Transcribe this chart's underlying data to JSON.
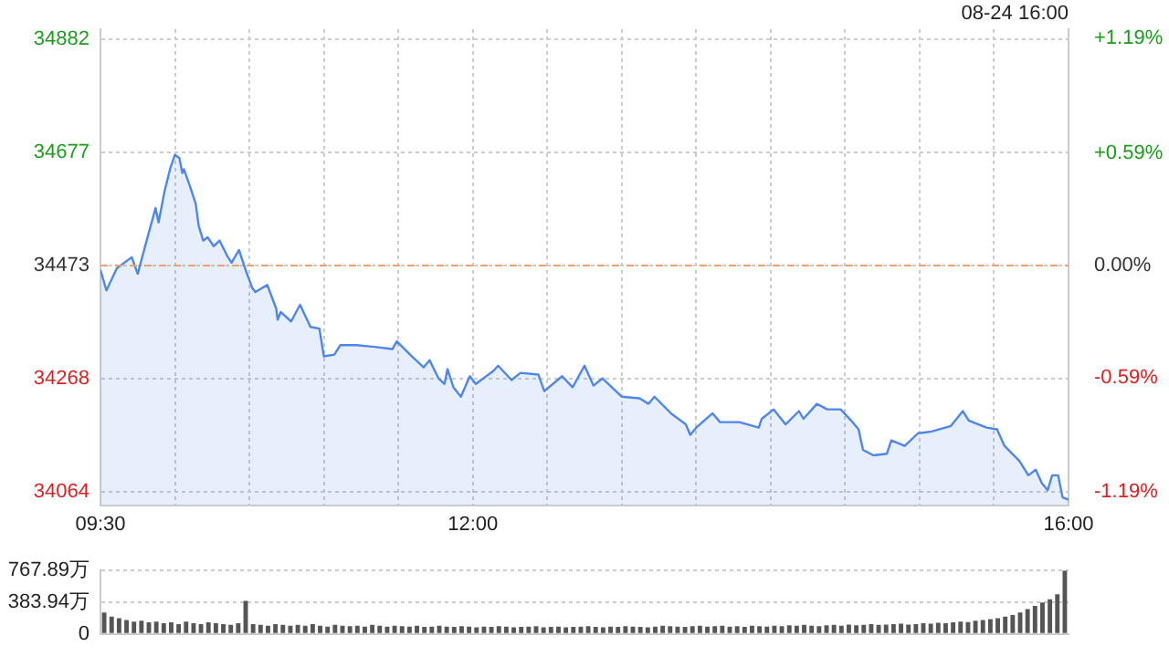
{
  "chart_data": [
    {
      "type": "area",
      "color": "#4f86ec",
      "marker": "none",
      "grid": true,
      "annotations": [
        "08-24 16:00"
      ],
      "x": [
        9.5,
        9.54,
        9.61,
        9.71,
        9.75,
        9.81,
        9.87,
        9.89,
        9.93,
        9.97,
        10.0,
        10.03,
        10.05,
        10.06,
        10.1,
        10.14,
        10.16,
        10.19,
        10.22,
        10.26,
        10.3,
        10.35,
        10.38,
        10.43,
        10.48,
        10.52,
        10.54,
        10.62,
        10.68,
        10.69,
        10.71,
        10.78,
        10.84,
        10.91,
        10.97,
        11.0,
        11.07,
        11.11,
        11.22,
        11.34,
        11.46,
        11.49,
        11.59,
        11.67,
        11.71,
        11.77,
        11.81,
        11.83,
        11.87,
        11.92,
        11.98,
        12.02,
        12.14,
        12.17,
        12.26,
        12.32,
        12.44,
        12.48,
        12.6,
        12.67,
        12.75,
        12.81,
        12.87,
        13.0,
        13.12,
        13.18,
        13.22,
        13.33,
        13.43,
        13.46,
        13.5,
        13.61,
        13.66,
        13.79,
        13.92,
        13.94,
        14.02,
        14.1,
        14.19,
        14.22,
        14.31,
        14.38,
        14.47,
        14.54,
        14.59,
        14.62,
        14.69,
        14.78,
        14.81,
        14.9,
        14.99,
        15.08,
        15.21,
        15.29,
        15.33,
        15.45,
        15.52,
        15.57,
        15.67,
        15.73,
        15.78,
        15.82,
        15.86,
        15.89,
        15.93,
        15.96,
        16.0
      ],
      "values": [
        34465,
        34428,
        34468,
        34488,
        34458,
        34518,
        34577,
        34551,
        34607,
        34650,
        34673,
        34667,
        34640,
        34647,
        34617,
        34584,
        34544,
        34518,
        34524,
        34508,
        34518,
        34491,
        34478,
        34501,
        34461,
        34432,
        34425,
        34438,
        34395,
        34375,
        34389,
        34372,
        34402,
        34362,
        34359,
        34309,
        34312,
        34329,
        34329,
        34326,
        34322,
        34336,
        34309,
        34289,
        34302,
        34269,
        34259,
        34286,
        34253,
        34236,
        34273,
        34259,
        34283,
        34292,
        34266,
        34279,
        34276,
        34246,
        34273,
        34253,
        34292,
        34256,
        34269,
        34236,
        34233,
        34223,
        34236,
        34206,
        34186,
        34167,
        34180,
        34206,
        34190,
        34190,
        34180,
        34196,
        34213,
        34186,
        34210,
        34196,
        34223,
        34213,
        34213,
        34193,
        34177,
        34140,
        34130,
        34133,
        34157,
        34147,
        34170,
        34173,
        34183,
        34210,
        34193,
        34180,
        34177,
        34147,
        34120,
        34094,
        34104,
        34080,
        34067,
        34094,
        34094,
        34054,
        34050
      ],
      "xlim": [
        9.5,
        16
      ],
      "xticks": [
        {
          "value": 9.5,
          "label": "09:30"
        },
        {
          "value": 10,
          "label": null
        },
        {
          "value": 10.5,
          "label": null
        },
        {
          "value": 11,
          "label": null
        },
        {
          "value": 11.5,
          "label": null
        },
        {
          "value": 12,
          "label": "12:00"
        },
        {
          "value": 12.5,
          "label": null
        },
        {
          "value": 13,
          "label": null
        },
        {
          "value": 13.5,
          "label": null
        },
        {
          "value": 14,
          "label": null
        },
        {
          "value": 14.5,
          "label": null
        },
        {
          "value": 15,
          "label": null
        },
        {
          "value": 15.5,
          "label": null
        },
        {
          "value": 16,
          "label": "16:00"
        }
      ],
      "ylim": [
        34040,
        34900
      ],
      "yticks": [
        34064,
        34268,
        34473,
        34677,
        34882
      ],
      "y2lim": [
        -1.26,
        1.24
      ],
      "y2ticks": [
        {
          "value": -1.19,
          "label": "-1.19%"
        },
        {
          "value": -0.59,
          "label": "-0.59%"
        },
        {
          "value": 0,
          "label": "0.00%"
        },
        {
          "value": 0.59,
          "label": "+0.59%"
        },
        {
          "value": 1.19,
          "label": "+1.19%"
        }
      ],
      "ref_lines": [
        {
          "axis": "y",
          "value": 34473,
          "color": "#f0a070",
          "line_style": "dashed"
        }
      ]
    },
    {
      "type": "bar",
      "color": "#555555",
      "grid": "y",
      "tick_labels": "y",
      "categories": [
        null,
        null,
        null,
        null,
        null,
        null,
        null,
        null,
        null,
        null,
        null,
        null,
        null,
        null,
        null,
        null,
        null,
        null,
        null,
        null,
        null,
        null,
        null,
        null,
        null,
        null,
        null,
        null,
        null,
        null,
        null,
        null,
        null,
        null,
        null,
        null,
        null,
        null,
        null,
        null,
        null,
        null,
        null,
        null,
        null,
        null,
        null,
        null,
        null,
        null,
        null,
        null,
        null,
        null,
        null,
        null,
        null,
        null,
        null,
        null,
        null,
        null,
        null,
        null,
        null,
        null,
        null,
        null,
        null,
        null,
        null,
        null,
        null,
        null,
        null,
        null,
        null,
        null,
        null,
        null,
        null,
        null,
        null,
        null,
        null,
        null,
        null,
        null,
        null,
        null,
        null,
        null,
        null,
        null,
        null,
        null,
        null,
        null,
        null,
        null,
        null,
        null,
        null,
        null,
        null,
        null,
        null,
        null,
        null,
        null,
        null,
        null,
        null,
        null,
        null,
        null,
        null,
        null,
        null,
        null,
        null,
        null,
        null,
        null,
        null,
        null,
        null,
        null,
        null,
        null
      ],
      "values": [
        260,
        210,
        190,
        170,
        150,
        160,
        140,
        150,
        130,
        140,
        120,
        150,
        130,
        120,
        140,
        130,
        120,
        110,
        130,
        400,
        120,
        110,
        100,
        120,
        110,
        100,
        110,
        100,
        120,
        100,
        90,
        110,
        100,
        95,
        100,
        90,
        110,
        100,
        90,
        100,
        95,
        90,
        100,
        85,
        90,
        100,
        90,
        85,
        95,
        90,
        80,
        90,
        85,
        95,
        90,
        80,
        85,
        90,
        95,
        80,
        85,
        90,
        80,
        85,
        90,
        95,
        85,
        80,
        90,
        85,
        95,
        90,
        85,
        80,
        90,
        100,
        95,
        90,
        85,
        95,
        100,
        90,
        95,
        100,
        90,
        95,
        85,
        100,
        95,
        90,
        100,
        95,
        105,
        100,
        110,
        100,
        95,
        105,
        110,
        100,
        115,
        105,
        110,
        120,
        110,
        115,
        120,
        125,
        115,
        120,
        130,
        125,
        135,
        130,
        140,
        150,
        145,
        160,
        170,
        180,
        190,
        210,
        230,
        260,
        300,
        340,
        380,
        420,
        480,
        767.89
      ],
      "ylim": [
        0,
        767.89
      ],
      "yticks": [
        {
          "value": 0,
          "label": "0"
        },
        {
          "value": 383.94,
          "label": "383.94万"
        },
        {
          "value": 767.89,
          "label": "767.89万"
        }
      ]
    }
  ]
}
